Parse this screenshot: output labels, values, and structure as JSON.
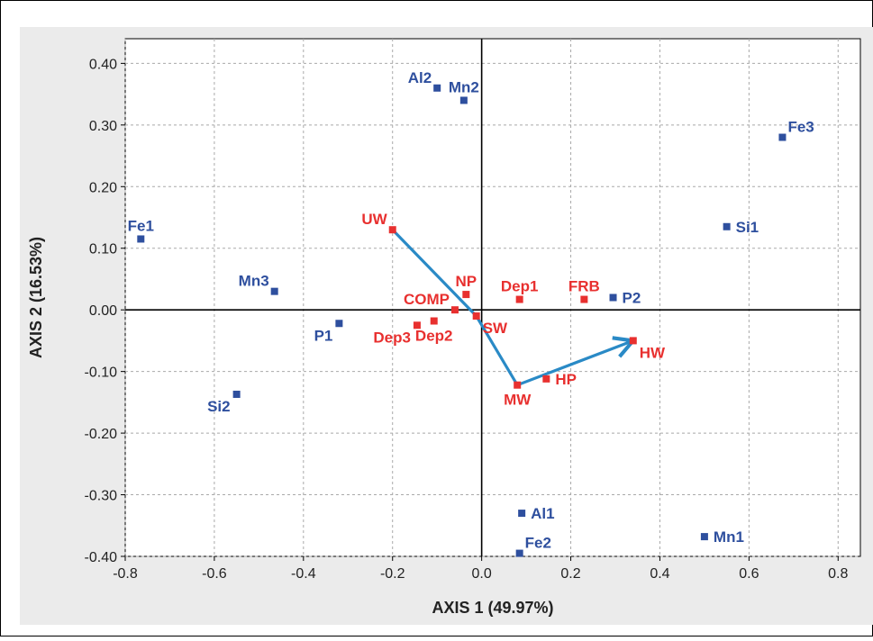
{
  "colors": {
    "background": "#ebebeb",
    "plot_background": "#ffffff",
    "axis": "#000000",
    "grid": "#a9a9a9",
    "blue_points": "#2e4f9e",
    "red_points": "#e8302f",
    "arrow": "#2a8ac6"
  },
  "chart_data": {
    "type": "scatter",
    "xlabel": "AXIS 1 (49.97%)",
    "ylabel": "AXIS 2 (16.53%)",
    "xlim": [
      -0.8,
      0.85
    ],
    "ylim": [
      -0.4,
      0.44
    ],
    "x_ticks": [
      "-0.8",
      "-0.6",
      "-0.4",
      "-0.2",
      "0.0",
      "0.2",
      "0.4",
      "0.6",
      "0.8"
    ],
    "y_ticks": [
      "0.40",
      "0.30",
      "0.20",
      "0.10",
      "0.00",
      "-0.10",
      "-0.20",
      "-0.30",
      "-0.40"
    ],
    "grid": true,
    "series": [
      {
        "color": "blue",
        "points": [
          {
            "label": "Al2",
            "x": -0.1,
            "y": 0.36,
            "label_pos": "upper-left"
          },
          {
            "label": "Mn2",
            "x": -0.04,
            "y": 0.34,
            "label_pos": "above"
          },
          {
            "label": "Fe3",
            "x": 0.675,
            "y": 0.28,
            "label_pos": "upper-right"
          },
          {
            "label": "Fe1",
            "x": -0.765,
            "y": 0.115,
            "label_pos": "above"
          },
          {
            "label": "Si1",
            "x": 0.55,
            "y": 0.135,
            "label_pos": "right"
          },
          {
            "label": "Mn3",
            "x": -0.465,
            "y": 0.03,
            "label_pos": "upper-left"
          },
          {
            "label": "P2",
            "x": 0.295,
            "y": 0.02,
            "label_pos": "right"
          },
          {
            "label": "P1",
            "x": -0.32,
            "y": -0.022,
            "label_pos": "lower-left"
          },
          {
            "label": "Si2",
            "x": -0.55,
            "y": -0.137,
            "label_pos": "lower-left"
          },
          {
            "label": "Al1",
            "x": 0.09,
            "y": -0.33,
            "label_pos": "right"
          },
          {
            "label": "Fe2",
            "x": 0.085,
            "y": -0.395,
            "label_pos": "upper-right"
          },
          {
            "label": "Mn1",
            "x": 0.5,
            "y": -0.368,
            "label_pos": "right"
          }
        ]
      },
      {
        "color": "red",
        "points": [
          {
            "label": "UW",
            "x": -0.2,
            "y": 0.13,
            "label_pos": "upper-left"
          },
          {
            "label": "NP",
            "x": -0.035,
            "y": 0.025,
            "label_pos": "above"
          },
          {
            "label": "COMP",
            "x": -0.06,
            "y": 0.0,
            "label_pos": "upper-left"
          },
          {
            "label": "Dep1",
            "x": 0.085,
            "y": 0.017,
            "label_pos": "above"
          },
          {
            "label": "FRB",
            "x": 0.23,
            "y": 0.017,
            "label_pos": "above"
          },
          {
            "label": "Dep3",
            "x": -0.145,
            "y": -0.025,
            "label_pos": "lower-left"
          },
          {
            "label": "Dep2",
            "x": -0.107,
            "y": -0.018,
            "label_pos": "below"
          },
          {
            "label": "SW",
            "x": -0.012,
            "y": -0.01,
            "label_pos": "lower-right"
          },
          {
            "label": "HW",
            "x": 0.34,
            "y": -0.05,
            "label_pos": "lower-right"
          },
          {
            "label": "HP",
            "x": 0.145,
            "y": -0.112,
            "label_pos": "right"
          },
          {
            "label": "MW",
            "x": 0.08,
            "y": -0.122,
            "label_pos": "below"
          }
        ]
      }
    ],
    "arrows": [
      {
        "points": [
          [
            -0.2,
            0.13
          ],
          [
            -0.012,
            -0.01
          ],
          [
            0.08,
            -0.122
          ],
          [
            0.34,
            -0.05
          ]
        ]
      }
    ]
  }
}
